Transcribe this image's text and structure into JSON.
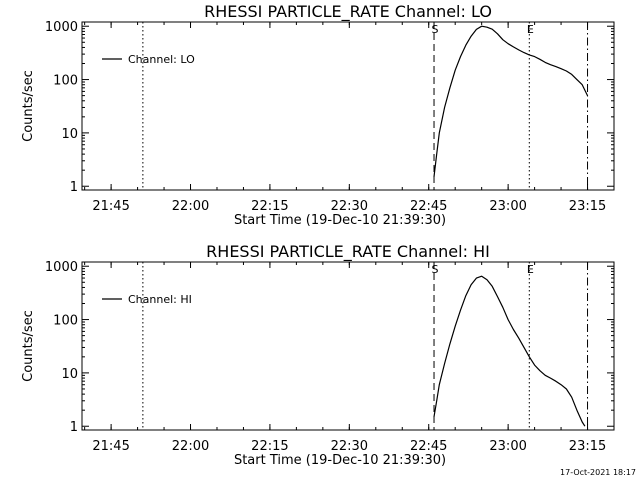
{
  "chart_data": [
    {
      "type": "line",
      "title": "RHESSI PARTICLE_RATE Channel: LO",
      "xlabel": "Start Time (19-Dec-10 21:39:30)",
      "ylabel": "Counts/sec",
      "x_scale": "time",
      "y_scale": "log",
      "xlim": [
        "21:39:30",
        "23:20:00"
      ],
      "ylim": [
        0.85,
        1200
      ],
      "x_ticks": [
        "21:45",
        "22:00",
        "22:15",
        "22:30",
        "22:45",
        "23:00",
        "23:15"
      ],
      "y_ticks": [
        "1",
        "10",
        "100",
        "1000"
      ],
      "legend": {
        "placement": "top-left"
      },
      "markers": [
        {
          "time": "21:51:00",
          "style": "dotted",
          "label": ""
        },
        {
          "time": "22:46:00",
          "style": "dashed",
          "label": "S"
        },
        {
          "time": "23:04:00",
          "style": "dotted",
          "label": "E"
        },
        {
          "time": "23:15:00",
          "style": "dashdot",
          "label": ""
        }
      ],
      "series": [
        {
          "name": "Channel: LO",
          "x": [
            "22:46:00",
            "22:46:30",
            "22:47:00",
            "22:48:00",
            "22:49:00",
            "22:50:00",
            "22:51:00",
            "22:52:00",
            "22:53:00",
            "22:54:00",
            "22:55:00",
            "22:56:00",
            "22:57:00",
            "22:58:00",
            "22:59:00",
            "23:00:00",
            "23:01:00",
            "23:02:00",
            "23:03:00",
            "23:04:00",
            "23:05:00",
            "23:06:00",
            "23:07:00",
            "23:08:00",
            "23:09:00",
            "23:10:00",
            "23:11:00",
            "23:12:00",
            "23:13:00",
            "23:14:00",
            "23:15:00"
          ],
          "y": [
            1.5,
            4,
            10,
            30,
            70,
            150,
            270,
            440,
            650,
            870,
            1000,
            960,
            880,
            720,
            560,
            470,
            410,
            360,
            320,
            290,
            270,
            240,
            210,
            190,
            175,
            160,
            145,
            125,
            100,
            80,
            50
          ]
        }
      ]
    },
    {
      "type": "line",
      "title": "RHESSI PARTICLE_RATE Channel: HI",
      "xlabel": "Start Time (19-Dec-10 21:39:30)",
      "ylabel": "Counts/sec",
      "x_scale": "time",
      "y_scale": "log",
      "xlim": [
        "21:39:30",
        "23:20:00"
      ],
      "ylim": [
        0.85,
        1200
      ],
      "x_ticks": [
        "21:45",
        "22:00",
        "22:15",
        "22:30",
        "22:45",
        "23:00",
        "23:15"
      ],
      "y_ticks": [
        "1",
        "10",
        "100",
        "1000"
      ],
      "legend": {
        "placement": "top-left"
      },
      "markers": [
        {
          "time": "21:51:00",
          "style": "dotted",
          "label": ""
        },
        {
          "time": "22:46:00",
          "style": "dashed",
          "label": "S"
        },
        {
          "time": "23:04:00",
          "style": "dotted",
          "label": "E"
        },
        {
          "time": "23:15:00",
          "style": "dashdot",
          "label": ""
        }
      ],
      "series": [
        {
          "name": "Channel: HI",
          "x": [
            "22:46:00",
            "22:46:30",
            "22:47:00",
            "22:48:00",
            "22:49:00",
            "22:50:00",
            "22:51:00",
            "22:52:00",
            "22:53:00",
            "22:54:00",
            "22:55:00",
            "22:56:00",
            "22:57:00",
            "22:58:00",
            "22:59:00",
            "23:00:00",
            "23:01:00",
            "23:02:00",
            "23:03:00",
            "23:04:00",
            "23:05:00",
            "23:06:00",
            "23:07:00",
            "23:08:00",
            "23:09:00",
            "23:10:00",
            "23:11:00",
            "23:12:00",
            "23:13:00",
            "23:14:00",
            "23:14:30"
          ],
          "y": [
            1.5,
            3,
            6,
            15,
            35,
            75,
            150,
            280,
            450,
            600,
            650,
            560,
            420,
            270,
            170,
            100,
            65,
            45,
            30,
            20,
            14,
            11,
            9,
            8,
            7,
            6,
            5,
            3.5,
            2,
            1.2,
            1
          ]
        }
      ]
    }
  ],
  "footer": {
    "timestamp": "17-Oct-2021 18:17"
  }
}
